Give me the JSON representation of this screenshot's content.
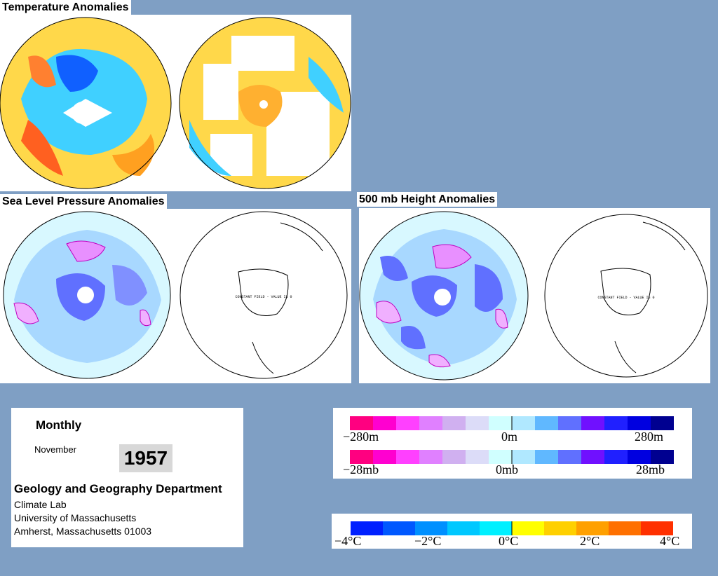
{
  "temperature": {
    "title": "Temperature Anomalies"
  },
  "slp": {
    "title": "Sea Level Pressure Anomalies",
    "constant_note": "CONSTANT FIELD - VALUE IS 0"
  },
  "height500": {
    "title": "500 mb Height Anomalies",
    "constant_note": "CONSTANT FIELD - VALUE IS 0"
  },
  "info": {
    "period": "Monthly",
    "month": "November",
    "year": "1957",
    "department": "Geology and Geography Department",
    "lab": "Climate Lab",
    "university": "University of Massachusetts",
    "address": "Amherst, Massachusetts 01003"
  },
  "height_pressure_legend": {
    "colors": [
      "#ff0080",
      "#ff00d0",
      "#ff40ff",
      "#e080ff",
      "#d0b0f0",
      "#dcdcf8",
      "#d0ffff",
      "#b0e8ff",
      "#60b8ff",
      "#6070ff",
      "#7010ff",
      "#2020ff",
      "#0000e0",
      "#000090"
    ],
    "height_labels": [
      "−280m",
      "0m",
      "280m"
    ],
    "pressure_labels": [
      "−28mb",
      "0mb",
      "28mb"
    ]
  },
  "temperature_legend": {
    "colors": [
      "#0020ff",
      "#0058ff",
      "#0090ff",
      "#00c8ff",
      "#00f0ff",
      "#ffff00",
      "#ffd000",
      "#ffa000",
      "#ff7000",
      "#ff3000"
    ],
    "labels": [
      "−4°C",
      "−2°C",
      "0°C",
      "2°C",
      "4°C"
    ]
  }
}
